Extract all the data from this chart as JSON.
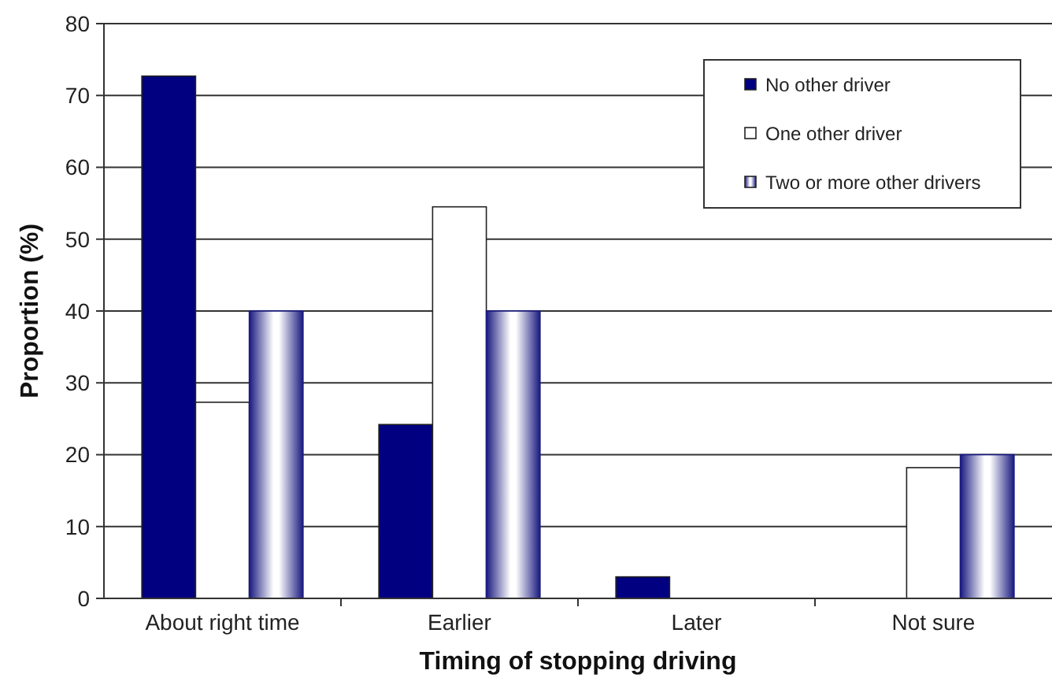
{
  "chart_data": {
    "type": "bar",
    "xlabel": "Timing of stopping driving",
    "ylabel": "Proportion (%)",
    "categories": [
      "About right time",
      "Earlier",
      "Later",
      "Not sure"
    ],
    "series": [
      {
        "name": "No other driver",
        "color": "#000080",
        "values": [
          72.7,
          24.2,
          3.0,
          0
        ]
      },
      {
        "name": "One other driver",
        "color": "#ffffff",
        "values": [
          27.3,
          54.5,
          0,
          18.2
        ]
      },
      {
        "name": "Two or more other drivers",
        "color": "#1a1a80",
        "values": [
          40,
          40,
          0,
          20
        ]
      }
    ],
    "ylim": [
      0,
      80
    ],
    "yticks": [
      0,
      10,
      20,
      30,
      40,
      50,
      60,
      70,
      80
    ],
    "grid": "y",
    "legend": "top right"
  }
}
